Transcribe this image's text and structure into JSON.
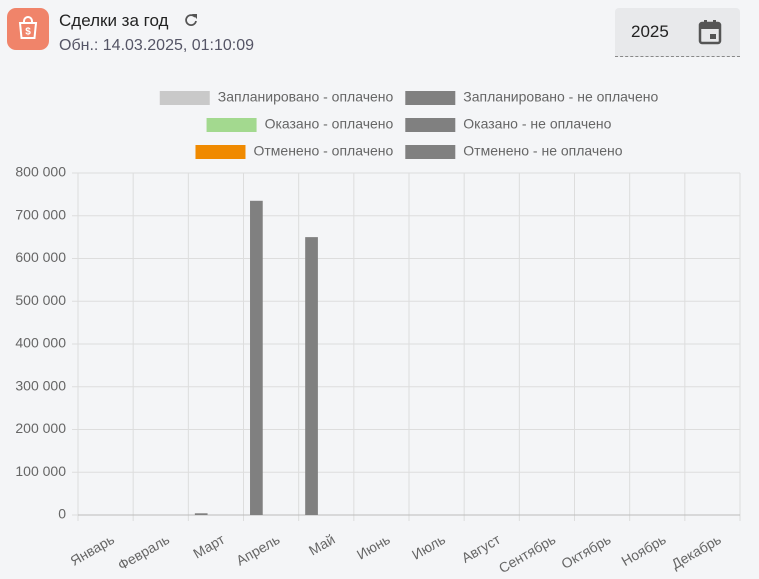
{
  "header": {
    "title": "Сделки за год",
    "subtitle": "Обн.: 14.03.2025, 01:10:09",
    "year": "2025"
  },
  "chart_data": {
    "type": "bar",
    "stacked": true,
    "categories": [
      "Январь",
      "Февраль",
      "Март",
      "Апрель",
      "Май",
      "Июнь",
      "Июль",
      "Август",
      "Сентябрь",
      "Октябрь",
      "Ноябрь",
      "Декабрь"
    ],
    "series": [
      {
        "name": "Запланировано - оплачено",
        "color": "#c9c9c9",
        "stack": 0,
        "values": [
          0,
          0,
          0,
          0,
          0,
          0,
          0,
          0,
          0,
          0,
          0,
          0
        ]
      },
      {
        "name": "Запланировано - не оплачено",
        "color": "#808080",
        "stack": 0,
        "values": [
          0,
          0,
          4000,
          735000,
          650000,
          0,
          0,
          0,
          0,
          0,
          0,
          0
        ]
      },
      {
        "name": "Оказано - оплачено",
        "color": "#a3d98f",
        "stack": 1,
        "values": [
          0,
          0,
          0,
          0,
          0,
          0,
          0,
          0,
          0,
          0,
          0,
          0
        ]
      },
      {
        "name": "Оказано - не оплачено",
        "color": "#808080",
        "stack": 1,
        "values": [
          0,
          0,
          0,
          0,
          0,
          0,
          0,
          0,
          0,
          0,
          0,
          0
        ]
      },
      {
        "name": "Отменено - оплачено",
        "color": "#f08a00",
        "stack": 2,
        "values": [
          0,
          0,
          0,
          0,
          0,
          0,
          0,
          0,
          0,
          0,
          0,
          0
        ]
      },
      {
        "name": "Отменено - не оплачено",
        "color": "#808080",
        "stack": 2,
        "values": [
          0,
          0,
          0,
          0,
          0,
          0,
          0,
          0,
          0,
          0,
          0,
          0
        ]
      }
    ],
    "ylim": [
      0,
      800000
    ],
    "yticks": [
      0,
      {
        "value": 100000,
        "label": "100 000"
      },
      {
        "value": 200000,
        "label": "200 000"
      },
      {
        "value": 300000,
        "label": "300 000"
      },
      {
        "value": 400000,
        "label": "400 000"
      },
      {
        "value": 500000,
        "label": "500 000"
      },
      {
        "value": 600000,
        "label": "600 000"
      },
      {
        "value": 700000,
        "label": "700 000"
      },
      {
        "value": 800000,
        "label": "800 000"
      }
    ],
    "grid": true
  }
}
